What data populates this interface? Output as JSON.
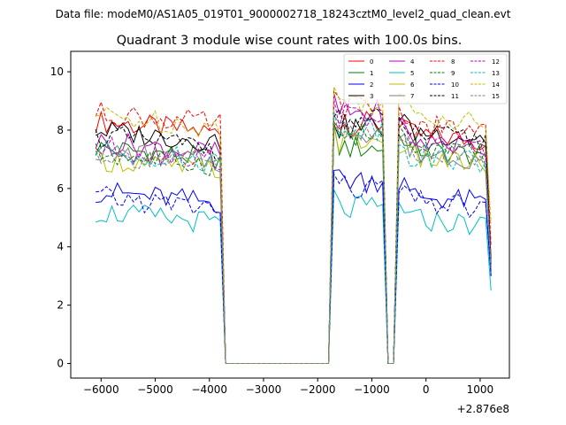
{
  "chart_data": {
    "type": "line",
    "suptitle": "Data file: modeM0/AS1A05_019T01_9000002718_18243cztM0_level2_quad_clean.evt",
    "title": "Quadrant 3 module wise count rates with 100.0s bins.",
    "xlabel": "",
    "ylabel": "",
    "x_offset_label": "+2.876e8",
    "xlim": [
      -6560,
      1540
    ],
    "ylim": [
      -0.5,
      10.7
    ],
    "xticks": [
      -6000,
      -5000,
      -4000,
      -3000,
      -2000,
      -1000,
      0,
      1000
    ],
    "xtick_labels": [
      "−6000",
      "−5000",
      "−4000",
      "−3000",
      "−2000",
      "−1000",
      "0",
      "1000"
    ],
    "yticks": [
      0,
      2,
      4,
      6,
      8,
      10
    ],
    "ytick_labels": [
      "0",
      "2",
      "4",
      "6",
      "8",
      "10"
    ],
    "legend_position": "top-right",
    "segments": [
      {
        "start": -6100,
        "end": -3800,
        "step": 100
      },
      {
        "start": -1700,
        "end": -800,
        "step": 100
      },
      {
        "start": -500,
        "end": 1200,
        "step": 100
      }
    ],
    "zero_gaps": [
      {
        "from": -3700,
        "to": -1800
      },
      {
        "from": -700,
        "to": -600
      }
    ],
    "series": [
      {
        "name": "0",
        "color": "#ff0000",
        "dash": "solid",
        "levels": [
          8.3,
          8.2,
          7.9
        ]
      },
      {
        "name": "1",
        "color": "#008000",
        "dash": "solid",
        "levels": [
          7.4,
          7.4,
          7.4
        ]
      },
      {
        "name": "2",
        "color": "#0000ff",
        "dash": "solid",
        "levels": [
          5.9,
          6.3,
          5.8
        ]
      },
      {
        "name": "3",
        "color": "#000000",
        "dash": "solid",
        "levels": [
          8.0,
          8.1,
          8.0
        ]
      },
      {
        "name": "4",
        "color": "#bf00bf",
        "dash": "solid",
        "levels": [
          7.6,
          8.6,
          7.7
        ]
      },
      {
        "name": "5",
        "color": "#00bfbf",
        "dash": "solid",
        "levels": [
          5.2,
          5.3,
          5.0
        ]
      },
      {
        "name": "6",
        "color": "#bfbf00",
        "dash": "solid",
        "levels": [
          7.0,
          7.6,
          7.1
        ]
      },
      {
        "name": "7",
        "color": "#808080",
        "dash": "solid",
        "levels": [
          7.3,
          8.0,
          7.3
        ]
      },
      {
        "name": "8",
        "color": "#ff0000",
        "dash": "dashed",
        "levels": [
          8.6,
          8.8,
          8.2
        ]
      },
      {
        "name": "9",
        "color": "#008000",
        "dash": "dashed",
        "levels": [
          7.2,
          7.8,
          7.4
        ]
      },
      {
        "name": "10",
        "color": "#0000ff",
        "dash": "dashed",
        "levels": [
          5.7,
          6.0,
          5.6
        ]
      },
      {
        "name": "11",
        "color": "#000000",
        "dash": "dashed",
        "levels": [
          7.8,
          8.3,
          7.9
        ]
      },
      {
        "name": "12",
        "color": "#bf00bf",
        "dash": "dashed",
        "levels": [
          7.4,
          8.5,
          7.6
        ]
      },
      {
        "name": "13",
        "color": "#00bfbf",
        "dash": "dashed",
        "levels": [
          7.3,
          8.1,
          7.2
        ]
      },
      {
        "name": "14",
        "color": "#bfbf00",
        "dash": "dashed",
        "levels": [
          8.5,
          9.0,
          8.6
        ]
      },
      {
        "name": "15",
        "color": "#808080",
        "dash": "dashed",
        "levels": [
          7.2,
          7.8,
          7.3
        ]
      }
    ],
    "end_values": [
      3.6,
      3.1,
      3.0,
      3.4,
      3.2,
      2.5,
      3.3,
      3.1,
      4.0,
      3.3,
      3.0,
      3.5,
      3.4,
      3.2,
      4.8,
      3.3
    ],
    "grid": false
  }
}
